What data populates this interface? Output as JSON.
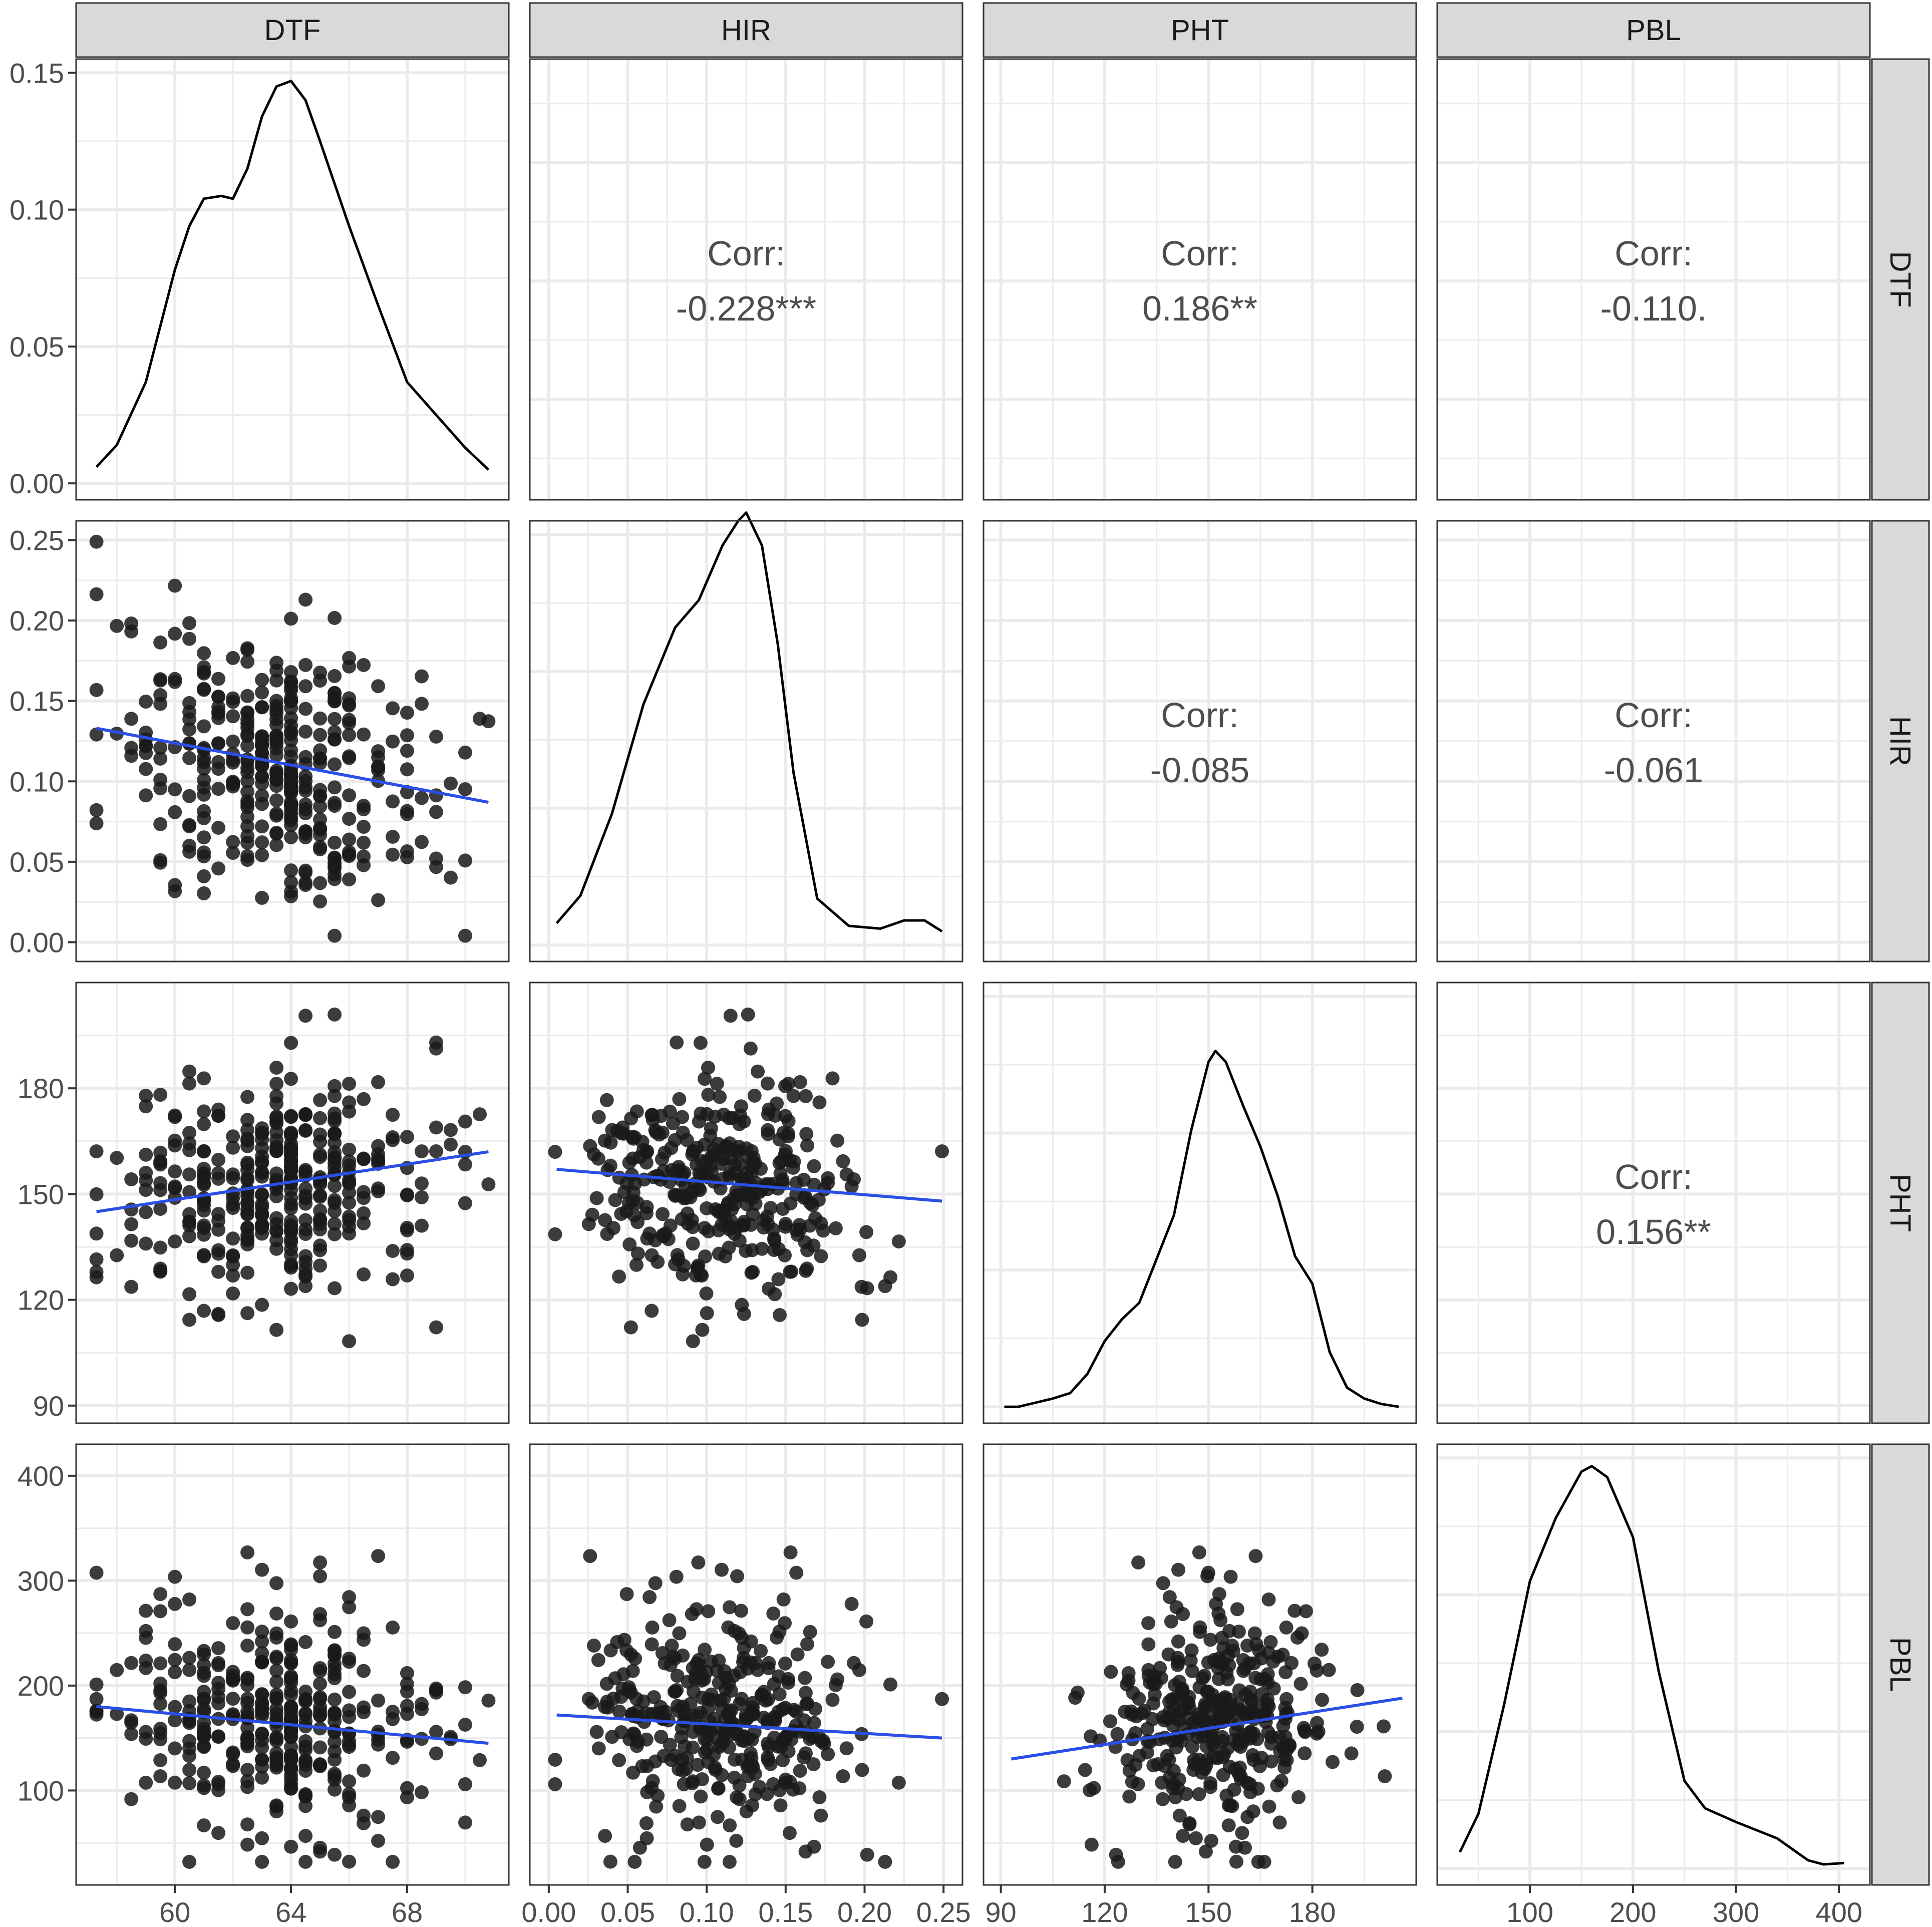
{
  "chart_data": {
    "type": "scatter",
    "variables": [
      "DTF",
      "HIR",
      "PHT",
      "PBL"
    ],
    "grid": true,
    "colors": {
      "points": "#1a1a1a",
      "fit_line": "#2b4fe6",
      "density_line": "#000000",
      "strip_fill": "#d9d9d9",
      "grid_line": "#ebebeb",
      "panel_border": "#333333",
      "corr_text": "#4d4d4d"
    },
    "axes": {
      "DTF": {
        "lim": [
          56.6,
          71.5
        ],
        "ticks": [
          60,
          64,
          68
        ],
        "tick_labels": [
          "60",
          "64",
          "68"
        ]
      },
      "HIR": {
        "lim": [
          -0.012,
          0.262
        ],
        "ticks": [
          0.0,
          0.05,
          0.1,
          0.15,
          0.2,
          0.25
        ],
        "tick_labels": [
          "0.00",
          "0.05",
          "0.10",
          "0.15",
          "0.20",
          "0.25"
        ]
      },
      "PHT": {
        "lim": [
          85,
          210
        ],
        "ticks": [
          90,
          120,
          150,
          180
        ],
        "tick_labels": [
          "90",
          "120",
          "150",
          "180"
        ]
      },
      "PBL": {
        "lim": [
          10,
          430
        ],
        "ticks": [
          100,
          200,
          300,
          400
        ],
        "tick_labels": [
          "100",
          "200",
          "300",
          "400"
        ]
      }
    },
    "density_axis": {
      "lim": [
        -0.006,
        0.155
      ],
      "ticks": [
        0.0,
        0.05,
        0.1,
        0.15
      ],
      "tick_labels": [
        "0.00",
        "0.05",
        "0.10",
        "0.15"
      ]
    },
    "correlations": [
      {
        "row": "DTF",
        "col": "HIR",
        "label": "Corr:",
        "value": "-0.228***"
      },
      {
        "row": "DTF",
        "col": "PHT",
        "label": "Corr:",
        "value": "0.186**"
      },
      {
        "row": "DTF",
        "col": "PBL",
        "label": "Corr:",
        "value": "-0.110."
      },
      {
        "row": "HIR",
        "col": "PHT",
        "label": "Corr:",
        "value": "-0.085"
      },
      {
        "row": "HIR",
        "col": "PBL",
        "label": "Corr:",
        "value": "-0.061"
      },
      {
        "row": "PHT",
        "col": "PBL",
        "label": "Corr:",
        "value": "0.156**"
      }
    ],
    "densities": {
      "DTF": {
        "x": [
          57.3,
          58,
          59,
          60,
          60.5,
          61,
          61.6,
          62,
          62.5,
          63,
          63.5,
          64,
          64.5,
          65,
          66,
          67,
          68,
          69,
          70,
          70.8
        ],
        "y": [
          0.006,
          0.014,
          0.037,
          0.078,
          0.094,
          0.104,
          0.105,
          0.104,
          0.115,
          0.134,
          0.145,
          0.147,
          0.14,
          0.125,
          0.094,
          0.065,
          0.037,
          0.025,
          0.013,
          0.005
        ]
      },
      "HIR": {
        "x": [
          0.005,
          0.02,
          0.04,
          0.06,
          0.08,
          0.095,
          0.11,
          0.12,
          0.125,
          0.135,
          0.145,
          0.155,
          0.17,
          0.19,
          0.21,
          0.225,
          0.238,
          0.249
        ],
        "y": [
          0.008,
          0.018,
          0.048,
          0.088,
          0.116,
          0.126,
          0.146,
          0.155,
          0.158,
          0.146,
          0.11,
          0.063,
          0.017,
          0.007,
          0.006,
          0.009,
          0.009,
          0.005
        ]
      },
      "PHT": {
        "x": [
          91,
          95,
          100,
          105,
          110,
          115,
          120,
          125,
          130,
          140,
          145,
          150,
          152,
          155,
          160,
          165,
          170,
          175,
          180,
          185,
          190,
          195,
          200,
          205
        ],
        "y": [
          0.0,
          0.0,
          0.0015,
          0.003,
          0.005,
          0.012,
          0.024,
          0.032,
          0.038,
          0.07,
          0.101,
          0.126,
          0.13,
          0.126,
          0.11,
          0.095,
          0.077,
          0.055,
          0.045,
          0.02,
          0.007,
          0.003,
          0.001,
          0.0
        ]
      },
      "PBL": {
        "x": [
          32,
          50,
          75,
          100,
          125,
          150,
          160,
          175,
          200,
          225,
          250,
          270,
          300,
          340,
          370,
          385,
          405
        ],
        "y": [
          0.006,
          0.02,
          0.06,
          0.105,
          0.128,
          0.145,
          0.147,
          0.143,
          0.121,
          0.072,
          0.032,
          0.022,
          0.017,
          0.011,
          0.003,
          0.0015,
          0.002
        ]
      }
    },
    "scatter_fits": {
      "HIR~DTF": {
        "x": [
          57.3,
          70.8
        ],
        "y": [
          0.133,
          0.087
        ]
      },
      "PHT~DTF": {
        "x": [
          57.3,
          70.8
        ],
        "y": [
          145.0,
          162.0
        ]
      },
      "PBL~DTF": {
        "x": [
          57.3,
          70.8
        ],
        "y": [
          180.0,
          145.0
        ]
      },
      "PHT~HIR": {
        "x": [
          0.005,
          0.249
        ],
        "y": [
          157.0,
          148.0
        ]
      },
      "PBL~HIR": {
        "x": [
          0.005,
          0.249
        ],
        "y": [
          172.0,
          150.0
        ]
      },
      "PBL~PHT": {
        "x": [
          93,
          206
        ],
        "y": [
          130.0,
          188.0
        ]
      }
    }
  }
}
